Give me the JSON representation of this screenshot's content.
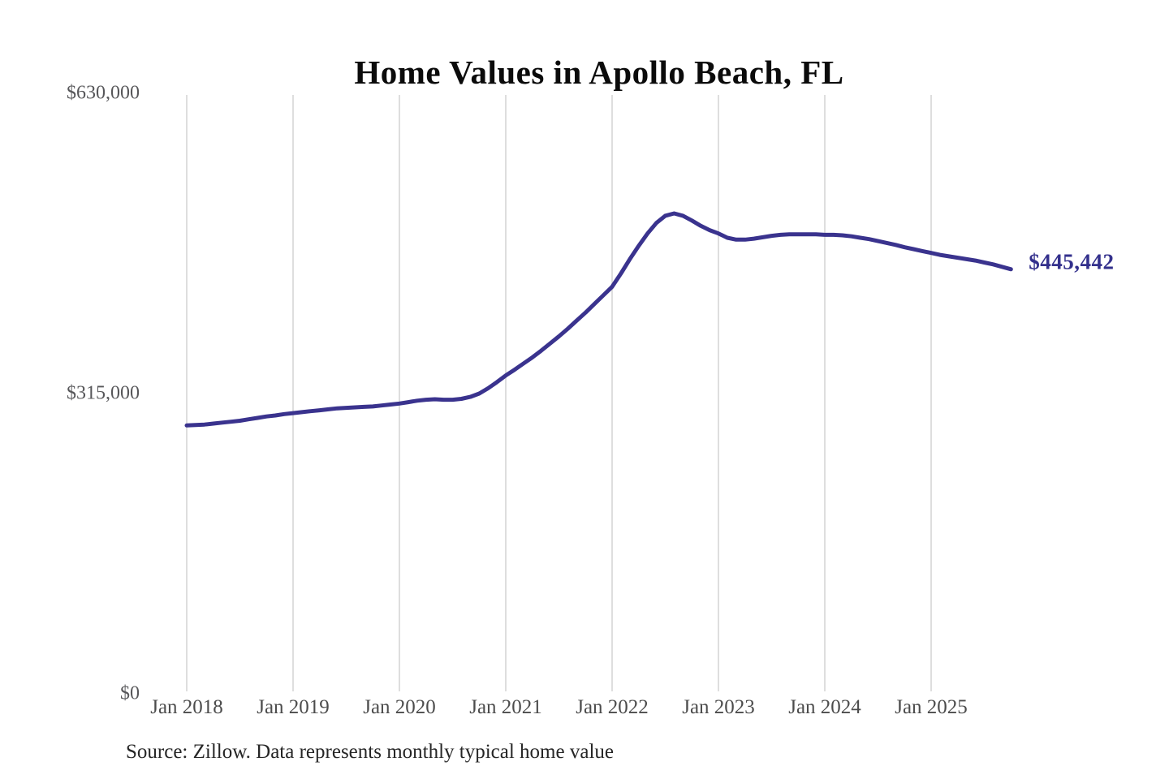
{
  "chart": {
    "title": "Home Values in Apollo Beach, FL",
    "end_label": "$445,442",
    "source": "Source: Zillow. Data represents monthly typical home value",
    "colors": {
      "line": "#3A338E",
      "grid": "#d4d4d4",
      "y_axis_text": "#57575a",
      "x_axis_text": "#4c4c4c",
      "title_text": "#0b0b0b",
      "end_label_text": "#33308C",
      "source_text": "#262626",
      "background": "#ffffff"
    },
    "y_ticks": [
      {
        "label": "$630,000",
        "value": 630000
      },
      {
        "label": "$315,000",
        "value": 315000
      },
      {
        "label": "$0",
        "value": 0
      }
    ]
  },
  "chart_data": {
    "type": "line",
    "title": "Home Values in Apollo Beach, FL",
    "xlabel": "",
    "ylabel": "",
    "ylim": [
      0,
      630000
    ],
    "y_tick_labels": [
      "$0",
      "$315,000",
      "$630,000"
    ],
    "x_tick_labels": [
      "Jan 2018",
      "Jan 2019",
      "Jan 2020",
      "Jan 2021",
      "Jan 2022",
      "Jan 2023",
      "Jan 2024",
      "Jan 2025"
    ],
    "grid": "vertical gridlines at each January tick",
    "legend_position": "none",
    "annotation": "$445,442",
    "source_note": "Source: Zillow. Data represents monthly typical home value",
    "series": [
      {
        "name": "Monthly typical home value",
        "unit": "USD",
        "frequency": "monthly",
        "start_month": "2018-01",
        "end_month": "2025-10",
        "peak_value": 504000,
        "peak_month": "2022-08",
        "final_value": 445442,
        "values": [
          281500,
          282000,
          282500,
          283500,
          284500,
          285500,
          286500,
          288000,
          289500,
          291000,
          292000,
          293500,
          294500,
          295500,
          296500,
          297500,
          298500,
          299500,
          300000,
          300500,
          301000,
          301500,
          302500,
          303500,
          304500,
          306000,
          307500,
          308500,
          309000,
          308500,
          308500,
          309500,
          311500,
          315000,
          320500,
          327000,
          334000,
          340000,
          346500,
          353000,
          360000,
          367500,
          375000,
          383000,
          391500,
          400000,
          409000,
          418000,
          427000,
          441000,
          456000,
          470000,
          483000,
          494000,
          501500,
          504000,
          501500,
          496500,
          491000,
          486500,
          483000,
          478500,
          476500,
          476500,
          477500,
          479000,
          480500,
          481500,
          482000,
          482000,
          482000,
          482000,
          481500,
          481500,
          481000,
          480000,
          478500,
          477000,
          475000,
          473000,
          471000,
          468500,
          466500,
          464500,
          462500,
          460500,
          459000,
          457500,
          456000,
          454500,
          452500,
          450500,
          448000,
          445442
        ]
      }
    ]
  }
}
